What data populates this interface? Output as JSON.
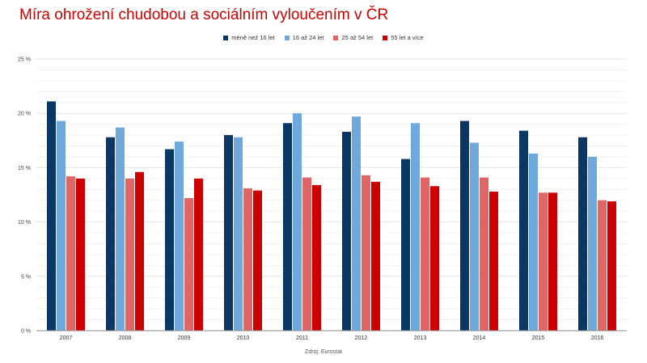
{
  "chart_data": {
    "type": "bar",
    "title": "Míra ohrožení chudobou a sociálním vyloučením v ČR",
    "categories": [
      "2007",
      "2008",
      "2009",
      "2010",
      "2011",
      "2012",
      "2013",
      "2014",
      "2015",
      "2016"
    ],
    "series": [
      {
        "name": "méně než 16 let",
        "color": "#0b3764",
        "values": [
          21.1,
          17.8,
          16.7,
          18.0,
          19.1,
          18.3,
          15.8,
          19.3,
          18.4,
          17.8
        ]
      },
      {
        "name": "16 až 24 let",
        "color": "#6fa8dc",
        "values": [
          19.3,
          18.7,
          17.4,
          17.8,
          20.0,
          19.7,
          19.1,
          17.3,
          16.3,
          16.0
        ]
      },
      {
        "name": "25 až 54 let",
        "color": "#e06666",
        "values": [
          14.2,
          14.0,
          12.2,
          13.1,
          14.1,
          14.3,
          14.1,
          14.1,
          12.7,
          12.0
        ]
      },
      {
        "name": "55 let a více",
        "color": "#cc0000",
        "values": [
          14.0,
          14.6,
          14.0,
          12.9,
          13.4,
          13.7,
          13.3,
          12.8,
          12.7,
          11.9
        ]
      }
    ],
    "yticks": [
      "0 %",
      "5 %",
      "10 %",
      "15 %",
      "20 %",
      "25 %"
    ],
    "ylim": [
      0,
      25
    ],
    "xlabel": "",
    "ylabel": "",
    "grid": true,
    "legend": "top-center"
  },
  "source": "Zdroj: Eurostat"
}
